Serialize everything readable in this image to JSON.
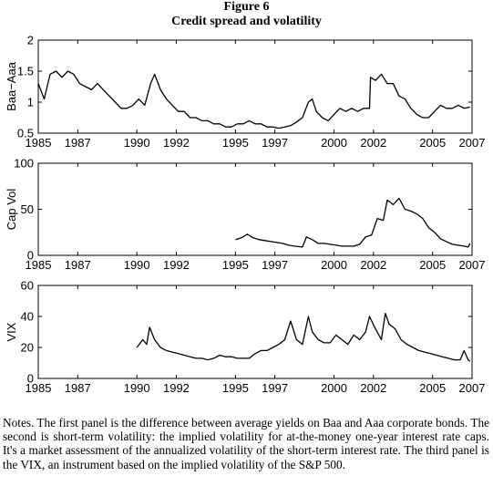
{
  "figure": {
    "number": "Figure 6",
    "title": "Credit spread and volatility",
    "notes": "Notes. The first panel is the difference between average yields on Baa and Aaa corporate bonds. The second is short-term volatility: the implied volatility for at-the-money one-year interest rate caps. It's a market assessment of the annualized volatility of the short-term interest rate. The third panel is the VIX, an instrument based on the implied volatility of the S&P 500."
  },
  "chart_data": [
    {
      "type": "line",
      "ylabel": "Baa−Aaa",
      "xlim": [
        1985,
        2007
      ],
      "ylim": [
        0.5,
        2
      ],
      "xticks": [
        1985,
        1987,
        1990,
        1992,
        1995,
        1997,
        2000,
        2002,
        2005,
        2007
      ],
      "yticks": [
        0.5,
        1,
        1.5,
        2
      ],
      "grid": false,
      "series": [
        {
          "x": [
            1985.0,
            1985.3,
            1985.6,
            1985.9,
            1986.2,
            1986.5,
            1986.8,
            1987.1,
            1987.4,
            1987.7,
            1988.0,
            1988.3,
            1988.6,
            1988.9,
            1989.2,
            1989.5,
            1989.8,
            1990.1,
            1990.4,
            1990.7,
            1990.9,
            1991.2,
            1991.5,
            1991.8,
            1992.1,
            1992.4,
            1992.7,
            1993.0,
            1993.3,
            1993.6,
            1993.9,
            1994.2,
            1994.5,
            1994.8,
            1995.1,
            1995.4,
            1995.7,
            1996.0,
            1996.3,
            1996.6,
            1996.9,
            1997.2,
            1997.5,
            1997.8,
            1998.1,
            1998.4,
            1998.7,
            1998.9,
            1999.1,
            1999.4,
            1999.7,
            2000.0,
            2000.3,
            2000.6,
            2000.9,
            2001.2,
            2001.5,
            2001.8,
            2001.85,
            2002.1,
            2002.4,
            2002.7,
            2003.0,
            2003.3,
            2003.6,
            2003.9,
            2004.2,
            2004.5,
            2004.8,
            2005.1,
            2005.4,
            2005.7,
            2006.0,
            2006.3,
            2006.6,
            2006.9
          ],
          "y": [
            1.3,
            1.05,
            1.45,
            1.5,
            1.4,
            1.5,
            1.45,
            1.3,
            1.25,
            1.2,
            1.3,
            1.2,
            1.1,
            1.0,
            0.9,
            0.9,
            0.95,
            1.05,
            0.95,
            1.3,
            1.45,
            1.2,
            1.05,
            0.95,
            0.85,
            0.85,
            0.75,
            0.75,
            0.7,
            0.7,
            0.65,
            0.65,
            0.6,
            0.6,
            0.65,
            0.65,
            0.7,
            0.65,
            0.65,
            0.6,
            0.6,
            0.58,
            0.6,
            0.62,
            0.68,
            0.75,
            1.0,
            1.05,
            0.85,
            0.75,
            0.7,
            0.8,
            0.9,
            0.85,
            0.9,
            0.85,
            0.9,
            0.9,
            1.4,
            1.35,
            1.45,
            1.3,
            1.3,
            1.1,
            1.05,
            0.9,
            0.8,
            0.75,
            0.75,
            0.85,
            0.95,
            0.9,
            0.9,
            0.95,
            0.9,
            0.92
          ]
        }
      ]
    },
    {
      "type": "line",
      "ylabel": "Cap Vol",
      "xlim": [
        1985,
        2007
      ],
      "ylim": [
        0,
        100
      ],
      "xticks": [
        1985,
        1987,
        1990,
        1992,
        1995,
        1997,
        2000,
        2002,
        2005,
        2007
      ],
      "yticks": [
        0,
        50,
        100
      ],
      "grid": false,
      "series": [
        {
          "x": [
            1995.0,
            1995.3,
            1995.6,
            1995.9,
            1996.2,
            1996.5,
            1996.8,
            1997.1,
            1997.4,
            1997.7,
            1998.0,
            1998.4,
            1998.6,
            1998.9,
            1999.2,
            1999.5,
            1999.8,
            2000.1,
            2000.4,
            2000.7,
            2001.0,
            2001.3,
            2001.6,
            2001.9,
            2002.2,
            2002.5,
            2002.7,
            2003.0,
            2003.3,
            2003.6,
            2003.9,
            2004.2,
            2004.5,
            2004.8,
            2005.1,
            2005.4,
            2005.7,
            2006.0,
            2006.3,
            2006.6,
            2006.8,
            2006.9
          ],
          "y": [
            17,
            19,
            23,
            19,
            17,
            16,
            15,
            14,
            13,
            11,
            10,
            9,
            20,
            17,
            13,
            13,
            12,
            11,
            10,
            10,
            10,
            12,
            20,
            22,
            40,
            38,
            60,
            55,
            62,
            50,
            48,
            45,
            40,
            30,
            25,
            18,
            15,
            12,
            11,
            10,
            9,
            13
          ]
        }
      ]
    },
    {
      "type": "line",
      "ylabel": "VIX",
      "xlim": [
        1985,
        2007
      ],
      "ylim": [
        0,
        60
      ],
      "xticks": [
        1985,
        1987,
        1990,
        1992,
        1995,
        1997,
        2000,
        2002,
        2005,
        2007
      ],
      "yticks": [
        0,
        20,
        40,
        60
      ],
      "grid": false,
      "series": [
        {
          "x": [
            1990.0,
            1990.3,
            1990.5,
            1990.65,
            1990.9,
            1991.2,
            1991.5,
            1991.8,
            1992.1,
            1992.4,
            1992.7,
            1993.0,
            1993.3,
            1993.6,
            1993.9,
            1994.2,
            1994.5,
            1994.8,
            1995.1,
            1995.4,
            1995.7,
            1996.0,
            1996.3,
            1996.6,
            1996.9,
            1997.2,
            1997.5,
            1997.8,
            1998.1,
            1998.4,
            1998.7,
            1998.9,
            1999.2,
            1999.5,
            1999.8,
            2000.1,
            2000.4,
            2000.7,
            2001.0,
            2001.3,
            2001.6,
            2001.8,
            2002.1,
            2002.4,
            2002.6,
            2002.8,
            2003.1,
            2003.4,
            2003.7,
            2004.0,
            2004.3,
            2004.6,
            2004.9,
            2005.2,
            2005.5,
            2005.8,
            2006.1,
            2006.4,
            2006.6,
            2006.8,
            2006.9
          ],
          "y": [
            20,
            25,
            22,
            33,
            25,
            20,
            18,
            17,
            16,
            15,
            14,
            13,
            13,
            12,
            13,
            15,
            14,
            14,
            13,
            13,
            13,
            16,
            18,
            18,
            20,
            22,
            25,
            37,
            25,
            22,
            40,
            30,
            25,
            23,
            23,
            28,
            25,
            22,
            28,
            25,
            30,
            40,
            32,
            25,
            42,
            35,
            32,
            25,
            22,
            20,
            18,
            17,
            16,
            15,
            14,
            13,
            12,
            12,
            18,
            12,
            11
          ]
        }
      ]
    }
  ]
}
